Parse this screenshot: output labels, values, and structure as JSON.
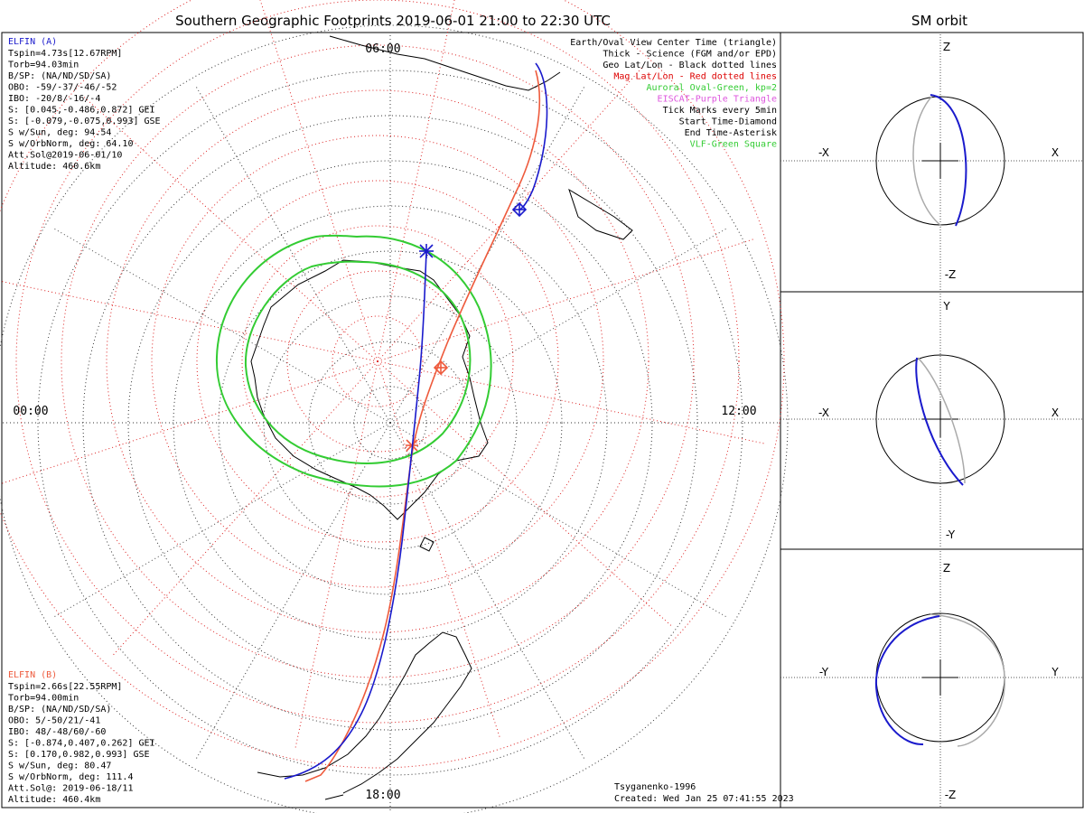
{
  "title": "Southern Geographic Footprints 2019-06-01 21:00 to 22:30 UTC",
  "sm_title": "SM orbit",
  "colors": {
    "elfin_a": "#1a1acc",
    "elfin_b": "#ee5a3c",
    "oval": "#33cc33",
    "geo_grid": "#333333",
    "mag_grid": "#dd2222",
    "eiscat": "#dd55dd",
    "coast": "#000000"
  },
  "map": {
    "mlt_labels": {
      "top": "06:00",
      "left": "00:00",
      "right": "12:00",
      "bottom": "18:00"
    }
  },
  "elfin_a": {
    "name": "ELFIN (A)",
    "lines": [
      "Tspin=4.73s[12.67RPM]",
      "Torb=94.03min",
      "B/SP: (NA/ND/SD/SA)",
      "OBO: -59/-37/-46/-52",
      "IBO: -20/8/-16/-4",
      "S: [0.045,-0.486,0.872] GEI",
      "S: [-0.079,-0.075,0.993] GSE",
      "S w/Sun, deg: 94.54",
      "S w/OrbNorm, deg: 64.10",
      "Att.Sol@2019-06-01/10",
      "Altitude: 460.6km"
    ]
  },
  "elfin_b": {
    "name": "ELFIN (B)",
    "lines": [
      "Tspin=2.66s[22.55RPM]",
      "Torb=94.00min",
      "B/SP: (NA/ND/SD/SA)",
      "OBO: 5/-50/21/-41",
      "IBO: 48/-48/60/-60",
      "S: [-0.874,0.407,0.262] GEI",
      "S: [0.170,0.982,0.993] GSE",
      "S w/Sun, deg: 80.47",
      "S w/OrbNorm, deg: 111.4",
      "Att.Sol@: 2019-06-18/11",
      "Altitude: 460.4km"
    ]
  },
  "legend": [
    {
      "text": "Earth/Oval View Center Time (triangle)",
      "color": "#000000"
    },
    {
      "text": "Thick - Science (FGM and/or EPD)",
      "color": "#000000"
    },
    {
      "text": "Geo Lat/Lon - Black dotted lines",
      "color": "#000000"
    },
    {
      "text": "Mag Lat/Lon - Red dotted lines",
      "color": "#dd0000"
    },
    {
      "text": "Auroral Oval-Green, kp=2",
      "color": "#33cc33"
    },
    {
      "text": "EISCAT-Purple Triangle",
      "color": "#dd55dd"
    },
    {
      "text": "Tick Marks every 5min",
      "color": "#000000"
    },
    {
      "text": "Start Time-Diamond",
      "color": "#000000"
    },
    {
      "text": "End Time-Asterisk",
      "color": "#000000"
    },
    {
      "text": "VLF-Green Square",
      "color": "#33cc33"
    }
  ],
  "credit": [
    "Tsyganenko-1996",
    "Created: Wed Jan 25 07:41:55 2023"
  ],
  "sm_panels": [
    {
      "axes": {
        "top": "Z",
        "bottom": "-Z",
        "left": "-X",
        "right": "X"
      }
    },
    {
      "axes": {
        "top": "Y",
        "bottom": "-Y",
        "left": "-X",
        "right": "X"
      }
    },
    {
      "axes": {
        "top": "Z",
        "bottom": "-Z",
        "left": "-Y",
        "right": "Y"
      }
    }
  ]
}
